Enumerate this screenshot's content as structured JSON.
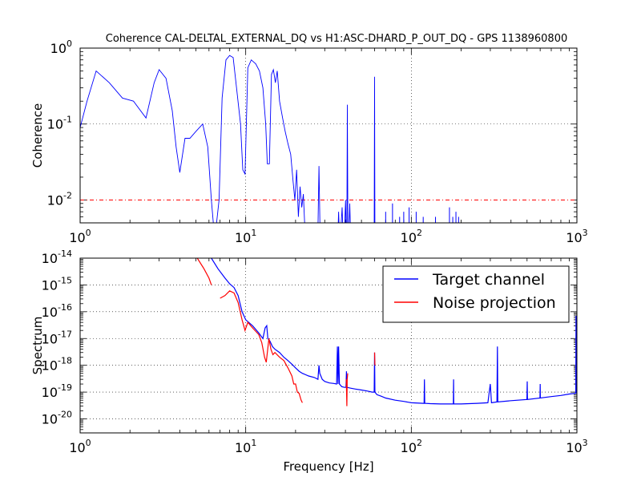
{
  "chart_data": [
    {
      "type": "line",
      "title": "Coherence CAL-DELTAL_EXTERNAL_DQ vs H1:ASC-DHARD_P_OUT_DQ - GPS 1138960800",
      "xlabel": "",
      "ylabel": "Coherence",
      "xscale": "log",
      "yscale": "log",
      "xlim": [
        1,
        1000
      ],
      "ylim": [
        0.005,
        1
      ],
      "grid": true,
      "x_ticks": [
        {
          "base": "10",
          "exp": "0",
          "value": 1
        },
        {
          "base": "10",
          "exp": "1",
          "value": 10
        },
        {
          "base": "10",
          "exp": "2",
          "value": 100
        },
        {
          "base": "10",
          "exp": "3",
          "value": 1000
        }
      ],
      "y_ticks": [
        {
          "base": "10",
          "exp": "0",
          "value": 1
        },
        {
          "base": "10",
          "exp": "-1",
          "value": 0.1
        },
        {
          "base": "10",
          "exp": "-2",
          "value": 0.01
        }
      ],
      "threshold": {
        "value": 0.01,
        "color": "#ff0000",
        "style": "dashdot"
      },
      "series": [
        {
          "color": "#0000ff",
          "points": [
            [
              1,
              0.09
            ],
            [
              1.1,
              0.2
            ],
            [
              1.25,
              0.5
            ],
            [
              1.5,
              0.35
            ],
            [
              1.8,
              0.22
            ],
            [
              2.1,
              0.2
            ],
            [
              2.5,
              0.12
            ],
            [
              2.8,
              0.35
            ],
            [
              3.0,
              0.52
            ],
            [
              3.3,
              0.4
            ],
            [
              3.6,
              0.15
            ],
            [
              3.8,
              0.05
            ],
            [
              4.0,
              0.023
            ],
            [
              4.3,
              0.065
            ],
            [
              4.6,
              0.065
            ],
            [
              5.0,
              0.08
            ],
            [
              5.5,
              0.1
            ],
            [
              5.9,
              0.05
            ],
            [
              6.2,
              0.01
            ],
            [
              6.5,
              0.003
            ],
            [
              6.9,
              0.01
            ],
            [
              7.2,
              0.22
            ],
            [
              7.6,
              0.7
            ],
            [
              8.0,
              0.8
            ],
            [
              8.4,
              0.75
            ],
            [
              8.8,
              0.3
            ],
            [
              9.3,
              0.1
            ],
            [
              9.6,
              0.025
            ],
            [
              9.9,
              0.022
            ],
            [
              10.3,
              0.55
            ],
            [
              10.8,
              0.7
            ],
            [
              11.5,
              0.62
            ],
            [
              12.1,
              0.5
            ],
            [
              12.7,
              0.3
            ],
            [
              13.2,
              0.1
            ],
            [
              13.5,
              0.03
            ],
            [
              13.9,
              0.03
            ],
            [
              14.3,
              0.45
            ],
            [
              14.7,
              0.52
            ],
            [
              15.1,
              0.35
            ],
            [
              15.5,
              0.5
            ],
            [
              16.0,
              0.2
            ],
            [
              16.7,
              0.12
            ],
            [
              17.3,
              0.08
            ],
            [
              18.0,
              0.055
            ],
            [
              18.7,
              0.04
            ],
            [
              19.3,
              0.018
            ],
            [
              19.8,
              0.01
            ],
            [
              20.3,
              0.025
            ],
            [
              20.8,
              0.006
            ],
            [
              21.3,
              0.015
            ],
            [
              21.8,
              0.008
            ],
            [
              22.3,
              0.012
            ],
            [
              22.7,
              0.005
            ],
            [
              23.3,
              0.004
            ],
            [
              25,
              0.004
            ],
            [
              26,
              0.004
            ],
            [
              27.3,
              0.004
            ],
            [
              27.7,
              0.028
            ],
            [
              28.1,
              0.004
            ],
            [
              30,
              0.004
            ],
            [
              33,
              0.004
            ],
            [
              35,
              0.004
            ],
            [
              36.1,
              0.004
            ],
            [
              36.4,
              0.007
            ],
            [
              36.7,
              0.004
            ],
            [
              37.5,
              0.004
            ],
            [
              38.2,
              0.008
            ],
            [
              38.6,
              0.004
            ],
            [
              39.5,
              0.004
            ],
            [
              40.1,
              0.01
            ],
            [
              40.4,
              0.004
            ],
            [
              40.8,
              0.004
            ],
            [
              41.1,
              0.18
            ],
            [
              41.4,
              0.004
            ],
            [
              42,
              0.004
            ],
            [
              42.5,
              0.009
            ],
            [
              42.9,
              0.004
            ],
            [
              45,
              0.004
            ],
            [
              50,
              0.004
            ],
            [
              55,
              0.004
            ],
            [
              59.7,
              0.004
            ],
            [
              60.0,
              0.42
            ],
            [
              60.3,
              0.004
            ],
            [
              61,
              0.004
            ],
            [
              62,
              0.004
            ],
            [
              65,
              0.004
            ],
            [
              70,
              0.004
            ],
            [
              80,
              0.004
            ]
          ]
        }
      ],
      "spikes": [
        [
          70,
          0.007
        ],
        [
          77,
          0.009
        ],
        [
          85,
          0.006
        ],
        [
          90,
          0.007
        ],
        [
          97,
          0.008
        ],
        [
          107,
          0.007
        ],
        [
          118,
          0.006
        ],
        [
          130,
          0.005
        ],
        [
          140,
          0.006
        ],
        [
          170,
          0.008
        ],
        [
          178,
          0.006
        ],
        [
          186,
          0.007
        ],
        [
          193,
          0.006
        ],
        [
          200,
          0.005
        ],
        [
          240,
          0.005
        ]
      ]
    },
    {
      "type": "line",
      "title": "",
      "xlabel": "Frequency [Hz]",
      "ylabel": "Spectrum",
      "xscale": "log",
      "yscale": "log",
      "xlim": [
        1,
        1000
      ],
      "ylim": [
        3e-21,
        1e-14
      ],
      "grid": true,
      "x_ticks": [
        {
          "base": "10",
          "exp": "0",
          "value": 1
        },
        {
          "base": "10",
          "exp": "1",
          "value": 10
        },
        {
          "base": "10",
          "exp": "2",
          "value": 100
        },
        {
          "base": "10",
          "exp": "3",
          "value": 1000
        }
      ],
      "y_ticks": [
        {
          "base": "10",
          "exp": "-14",
          "value": 1e-14
        },
        {
          "base": "10",
          "exp": "-15",
          "value": 1e-15
        },
        {
          "base": "10",
          "exp": "-16",
          "value": 1e-16
        },
        {
          "base": "10",
          "exp": "-17",
          "value": 1e-17
        },
        {
          "base": "10",
          "exp": "-18",
          "value": 1e-18
        },
        {
          "base": "10",
          "exp": "-19",
          "value": 1e-19
        },
        {
          "base": "10",
          "exp": "-20",
          "value": 1e-20
        }
      ],
      "legend": {
        "placement": "top-right"
      },
      "series": [
        {
          "name": "Target channel",
          "color": "#0000ff",
          "points": [
            [
              6.2,
              1e-14
            ],
            [
              6.8,
              4e-15
            ],
            [
              7.5,
              1.8e-15
            ],
            [
              8.0,
              1.1e-15
            ],
            [
              8.5,
              8e-16
            ],
            [
              9.0,
              4e-16
            ],
            [
              9.5,
              1e-16
            ],
            [
              10,
              5e-17
            ],
            [
              11,
              3e-17
            ],
            [
              12,
              1.6e-17
            ],
            [
              12.7,
              1e-17
            ],
            [
              13.1,
              2.5e-17
            ],
            [
              13.4,
              3e-17
            ],
            [
              13.6,
              1e-17
            ],
            [
              14,
              8e-18
            ],
            [
              14.5,
              5e-18
            ],
            [
              15,
              4e-18
            ],
            [
              16,
              3e-18
            ],
            [
              17,
              2e-18
            ],
            [
              18,
              1.5e-18
            ],
            [
              19,
              1.1e-18
            ],
            [
              20,
              8e-19
            ],
            [
              21,
              6e-19
            ],
            [
              22,
              5e-19
            ],
            [
              24,
              4e-19
            ],
            [
              26,
              3.5e-19
            ],
            [
              27.3,
              3e-19
            ],
            [
              27.7,
              1e-18
            ],
            [
              28,
              5e-19
            ],
            [
              29,
              3e-19
            ],
            [
              30,
              2.5e-19
            ],
            [
              32,
              2.2e-19
            ],
            [
              34,
              2.1e-19
            ],
            [
              35.4,
              2e-19
            ],
            [
              35.8,
              5e-18
            ],
            [
              36.1,
              2e-19
            ],
            [
              36.4,
              5e-18
            ],
            [
              36.8,
              2e-19
            ],
            [
              38,
              1.6e-19
            ],
            [
              39.5,
              1.5e-19
            ],
            [
              40.3,
              1.5e-19
            ],
            [
              40.6,
              6e-19
            ],
            [
              40.9,
              1.5e-19
            ],
            [
              43,
              1.4e-19
            ],
            [
              46,
              1.3e-19
            ],
            [
              50,
              1.2e-19
            ],
            [
              54,
              1.1e-19
            ],
            [
              58,
              1e-19
            ],
            [
              59.7,
              1e-19
            ],
            [
              60.0,
              3e-18
            ],
            [
              60.3,
              1e-19
            ],
            [
              62,
              8e-20
            ],
            [
              66,
              7e-20
            ],
            [
              70,
              6e-20
            ],
            [
              80,
              5e-20
            ],
            [
              90,
              4.5e-20
            ],
            [
              100,
              4e-20
            ],
            [
              118,
              3.8e-20
            ],
            [
              119.5,
              3.8e-20
            ],
            [
              120,
              3e-19
            ],
            [
              120.5,
              3.8e-20
            ],
            [
              130,
              3.7e-20
            ],
            [
              150,
              3.6e-20
            ],
            [
              178,
              3.6e-20
            ],
            [
              179.5,
              3.6e-20
            ],
            [
              180,
              3e-19
            ],
            [
              180.5,
              3.6e-20
            ],
            [
              200,
              3.6e-20
            ],
            [
              250,
              3.8e-20
            ],
            [
              290,
              4e-20
            ],
            [
              300,
              2e-19
            ],
            [
              305,
              4e-20
            ],
            [
              329,
              4.3e-20
            ],
            [
              331,
              5e-18
            ],
            [
              333,
              4.3e-20
            ],
            [
              400,
              4.8e-20
            ],
            [
              499,
              5.3e-20
            ],
            [
              501,
              2.5e-19
            ],
            [
              503,
              5.3e-20
            ],
            [
              598,
              6e-20
            ],
            [
              600,
              2e-19
            ],
            [
              602,
              6e-20
            ],
            [
              700,
              6.8e-20
            ],
            [
              800,
              7.5e-20
            ],
            [
              900,
              8.5e-20
            ],
            [
              985,
              9e-20
            ],
            [
              988,
              7e-17
            ],
            [
              991,
              9e-20
            ],
            [
              995,
              7e-17
            ],
            [
              998,
              9e-20
            ],
            [
              1000,
              7e-17
            ]
          ]
        },
        {
          "name": "Noise projection",
          "color": "#ff0000",
          "segments": [
            [
              [
                5.1,
                1e-14
              ],
              [
                5.6,
                4e-15
              ],
              [
                6.0,
                1.8e-15
              ],
              [
                6.2,
                1e-15
              ]
            ],
            [
              [
                7.0,
                3.2e-16
              ],
              [
                7.5,
                4e-16
              ],
              [
                8.0,
                6e-16
              ],
              [
                8.5,
                5e-16
              ],
              [
                9.0,
                2.2e-16
              ],
              [
                9.5,
                5e-17
              ],
              [
                9.9,
                2e-17
              ],
              [
                10.3,
                4e-17
              ],
              [
                11,
                2.5e-17
              ],
              [
                12,
                1.4e-17
              ],
              [
                12.5,
                7e-18
              ],
              [
                13,
                2e-18
              ],
              [
                13.3,
                1.3e-18
              ],
              [
                13.8,
                1e-17
              ],
              [
                14.2,
                4e-18
              ],
              [
                14.6,
                2.5e-18
              ],
              [
                15,
                3e-18
              ],
              [
                16,
                2e-18
              ],
              [
                17,
                1.5e-18
              ],
              [
                18,
                8e-19
              ],
              [
                19,
                4e-19
              ],
              [
                19.5,
                2e-19
              ],
              [
                20,
                2e-19
              ],
              [
                20.5,
                1e-19
              ],
              [
                21,
                9e-20
              ],
              [
                21.6,
                5e-20
              ],
              [
                22,
                4e-20
              ]
            ],
            [
              [
                40.5,
                3e-19
              ],
              [
                40.8,
                3e-20
              ],
              [
                41.0,
                3e-19
              ],
              [
                41.3,
                5e-19
              ]
            ],
            [
              [
                60.0,
                3e-18
              ],
              [
                60.3,
                1e-18
              ]
            ]
          ]
        }
      ]
    }
  ]
}
